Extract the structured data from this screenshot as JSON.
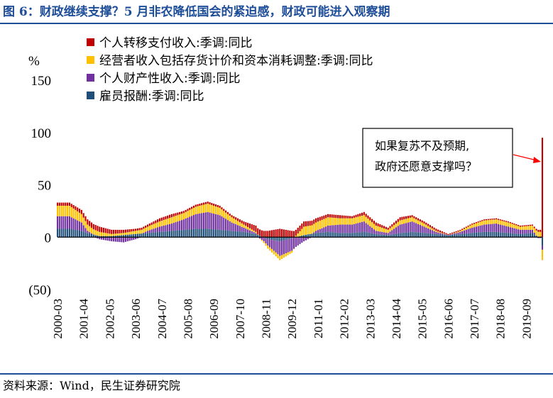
{
  "header": {
    "title": "图 6：财政继续支撑？5 月非农降低国会的紧迫感，财政可能进入观察期"
  },
  "footer": {
    "source": "资料来源：Wind，民生证券研究院"
  },
  "chart_data": {
    "type": "bar",
    "stacked": true,
    "unit_label": "%",
    "ylim": [
      -50,
      150
    ],
    "yticks": [
      {
        "value": 150,
        "label": "150"
      },
      {
        "value": 100,
        "label": "100"
      },
      {
        "value": 50,
        "label": "50"
      },
      {
        "value": 0,
        "label": "0"
      },
      {
        "value": -50,
        "label": "(50)"
      }
    ],
    "x_start": "2000-03",
    "x_end": "2020-05",
    "xtick_labels": [
      "2000-03",
      "2001-04",
      "2002-05",
      "2003-06",
      "2004-07",
      "2005-08",
      "2006-09",
      "2007-10",
      "2008-11",
      "2009-12",
      "2011-01",
      "2012-02",
      "2013-03",
      "2014-04",
      "2015-05",
      "2016-06",
      "2017-07",
      "2018-08",
      "2019-09"
    ],
    "legend_position": "top-left",
    "series": [
      {
        "name": "个人转移支付收入:季调:同比",
        "color": "#c00000"
      },
      {
        "name": "经营者收入包括存货计价和资本消耗调整:季调:同比",
        "color": "#ffc000"
      },
      {
        "name": "个人财产性收入:季调:同比",
        "color": "#7030a0"
      },
      {
        "name": "雇员报酬:季调:同比",
        "color": "#1f4e79"
      }
    ],
    "anchors": {
      "dates": [
        "2000-03",
        "2000-09",
        "2001-03",
        "2001-06",
        "2001-12",
        "2002-06",
        "2002-12",
        "2003-06",
        "2003-12",
        "2004-06",
        "2004-12",
        "2005-06",
        "2005-12",
        "2006-06",
        "2006-12",
        "2007-06",
        "2007-12",
        "2008-06",
        "2008-12",
        "2009-06",
        "2009-12",
        "2010-06",
        "2010-12",
        "2011-06",
        "2011-12",
        "2012-06",
        "2012-12",
        "2013-06",
        "2013-12",
        "2014-06",
        "2014-12",
        "2015-06",
        "2015-12",
        "2016-06",
        "2016-12",
        "2017-06",
        "2017-12",
        "2018-06",
        "2018-12",
        "2019-06",
        "2019-12",
        "2020-03"
      ],
      "transfer": [
        3,
        3,
        4,
        5,
        5,
        4,
        3,
        2,
        2,
        3,
        3,
        2,
        2,
        2,
        2,
        2,
        3,
        6,
        6,
        8,
        6,
        5,
        4,
        3,
        3,
        2,
        3,
        3,
        2,
        3,
        2,
        2,
        2,
        1,
        1,
        1,
        1,
        1,
        1,
        1,
        1,
        2
      ],
      "business": [
        10,
        10,
        8,
        6,
        4,
        2,
        2,
        3,
        4,
        5,
        6,
        6,
        7,
        8,
        7,
        5,
        3,
        1,
        -3,
        -4,
        -2,
        8,
        8,
        8,
        6,
        6,
        6,
        5,
        3,
        4,
        4,
        3,
        1,
        0,
        1,
        3,
        4,
        4,
        4,
        3,
        4,
        5
      ],
      "property": [
        12,
        12,
        8,
        2,
        -2,
        -4,
        -5,
        -2,
        2,
        5,
        7,
        10,
        14,
        16,
        14,
        8,
        4,
        1,
        -6,
        -14,
        -12,
        -4,
        2,
        6,
        8,
        8,
        10,
        3,
        2,
        8,
        10,
        6,
        2,
        0,
        2,
        5,
        7,
        8,
        6,
        4,
        3,
        -1
      ],
      "compensation": [
        8,
        8,
        6,
        4,
        1,
        1,
        2,
        3,
        4,
        5,
        6,
        7,
        8,
        8,
        7,
        6,
        5,
        3,
        -2,
        -4,
        -1,
        2,
        4,
        5,
        4,
        4,
        5,
        3,
        2,
        4,
        5,
        4,
        3,
        2,
        3,
        4,
        5,
        5,
        4,
        3,
        4,
        0
      ]
    },
    "last_period": {
      "date": "2020-05",
      "transfer": 95,
      "business": -10,
      "property": -4,
      "compensation": -8
    },
    "annotation": {
      "lines": [
        "如果复苏不及预期,",
        "政府还愿意支撑吗？"
      ],
      "arrow_color": "#ff0000"
    }
  }
}
